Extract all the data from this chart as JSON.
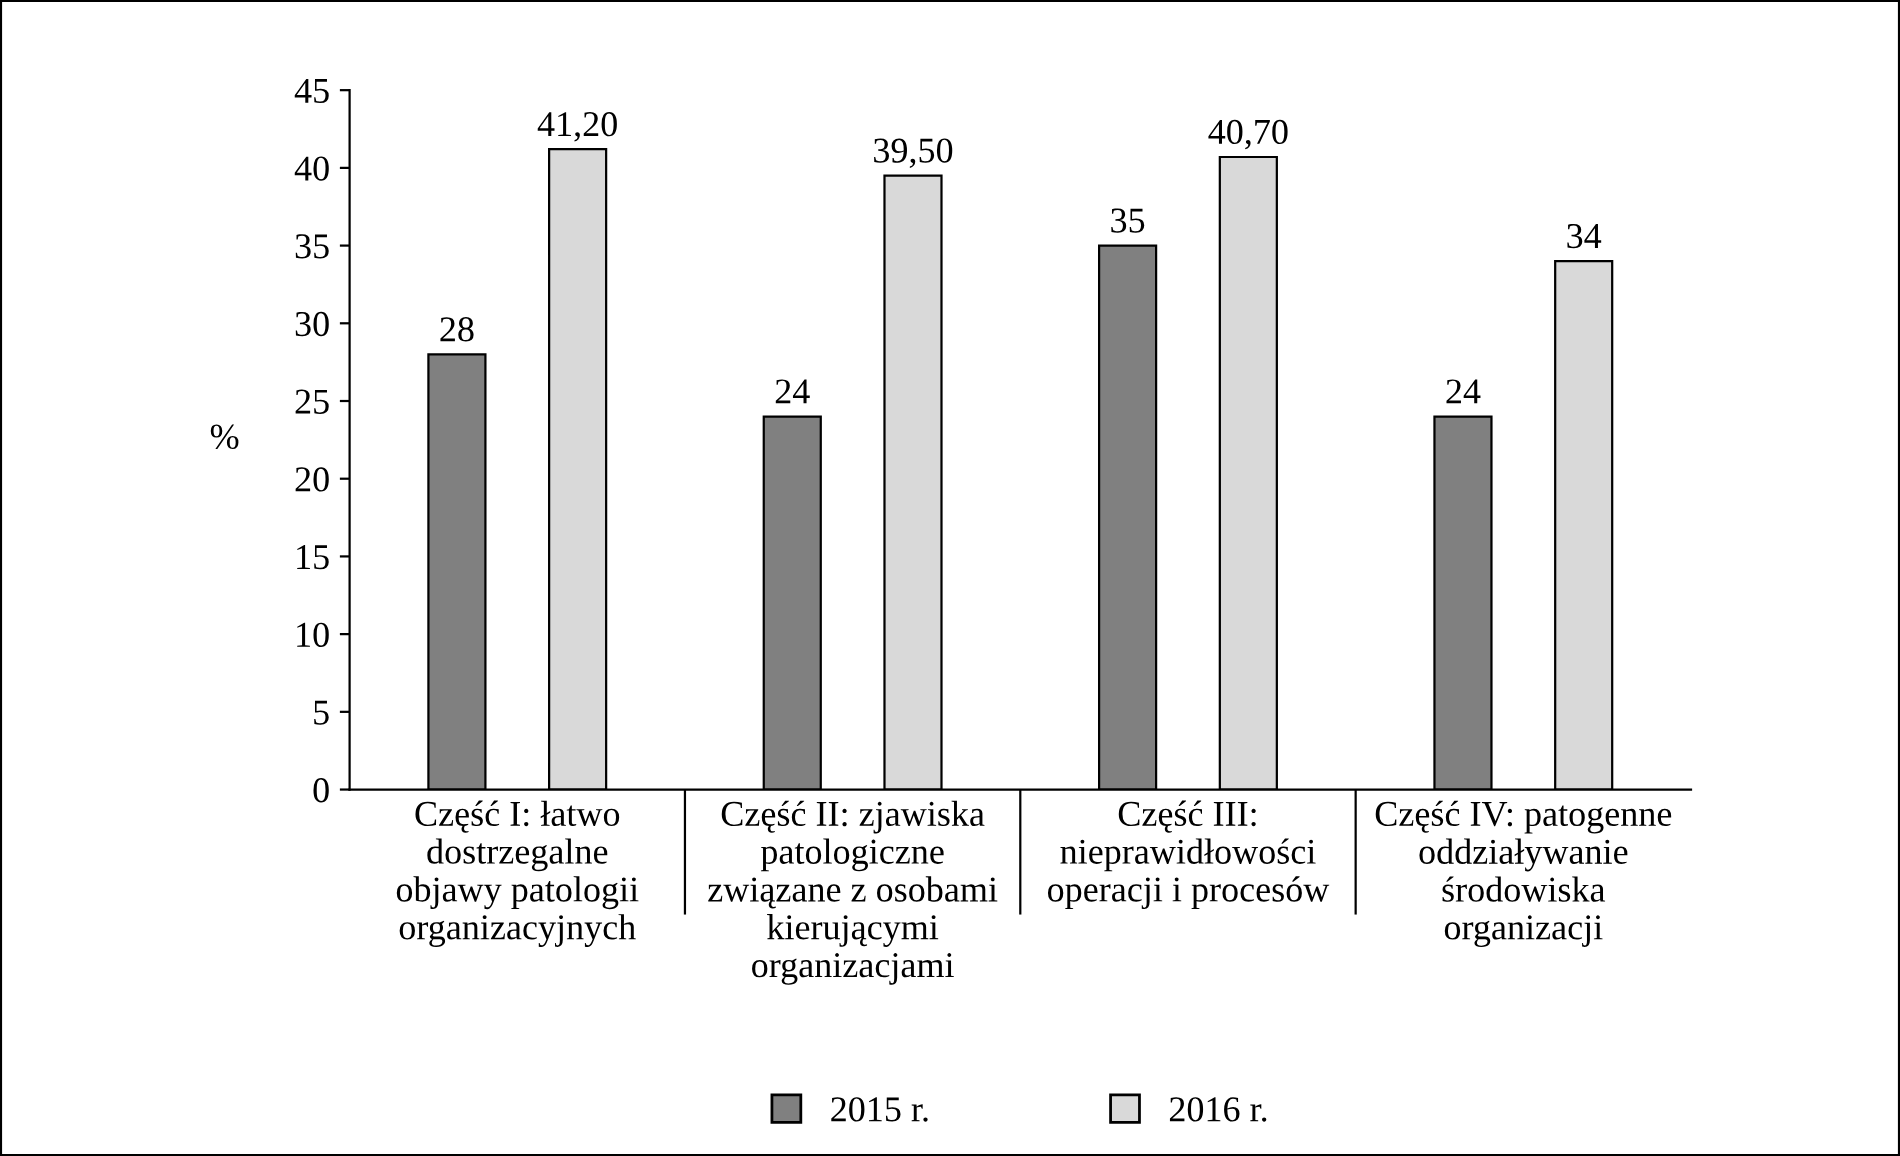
{
  "chart_data": {
    "type": "bar",
    "ylabel": "%",
    "categories": [
      "Część I: łatwo\ndostrzegalne\nobjawy patologii\norganizacyjnych",
      "Część II: zjawiska\npatologiczne\nzwiązane z osobami\nkierującymi\norganizacjami",
      "Część III:\nnieprawidłowości\noperacji i procesów",
      "Część IV: patogenne\noddziaływanie\nśrodowiska\norganizacji"
    ],
    "series": [
      {
        "name": "2015 r.",
        "color": "#808080",
        "values": [
          28,
          24,
          35,
          24
        ],
        "value_labels": [
          "28",
          "24",
          "35",
          "24"
        ]
      },
      {
        "name": "2016 r.",
        "color": "#d9d9d9",
        "values": [
          41.2,
          39.5,
          40.7,
          34
        ],
        "value_labels": [
          "41,20",
          "39,50",
          "40,70",
          "34"
        ]
      }
    ],
    "ylim": [
      0,
      45
    ],
    "yticks": [
      0,
      5,
      10,
      15,
      20,
      25,
      30,
      35,
      40,
      45
    ],
    "grid": false,
    "legend": "bottom"
  }
}
